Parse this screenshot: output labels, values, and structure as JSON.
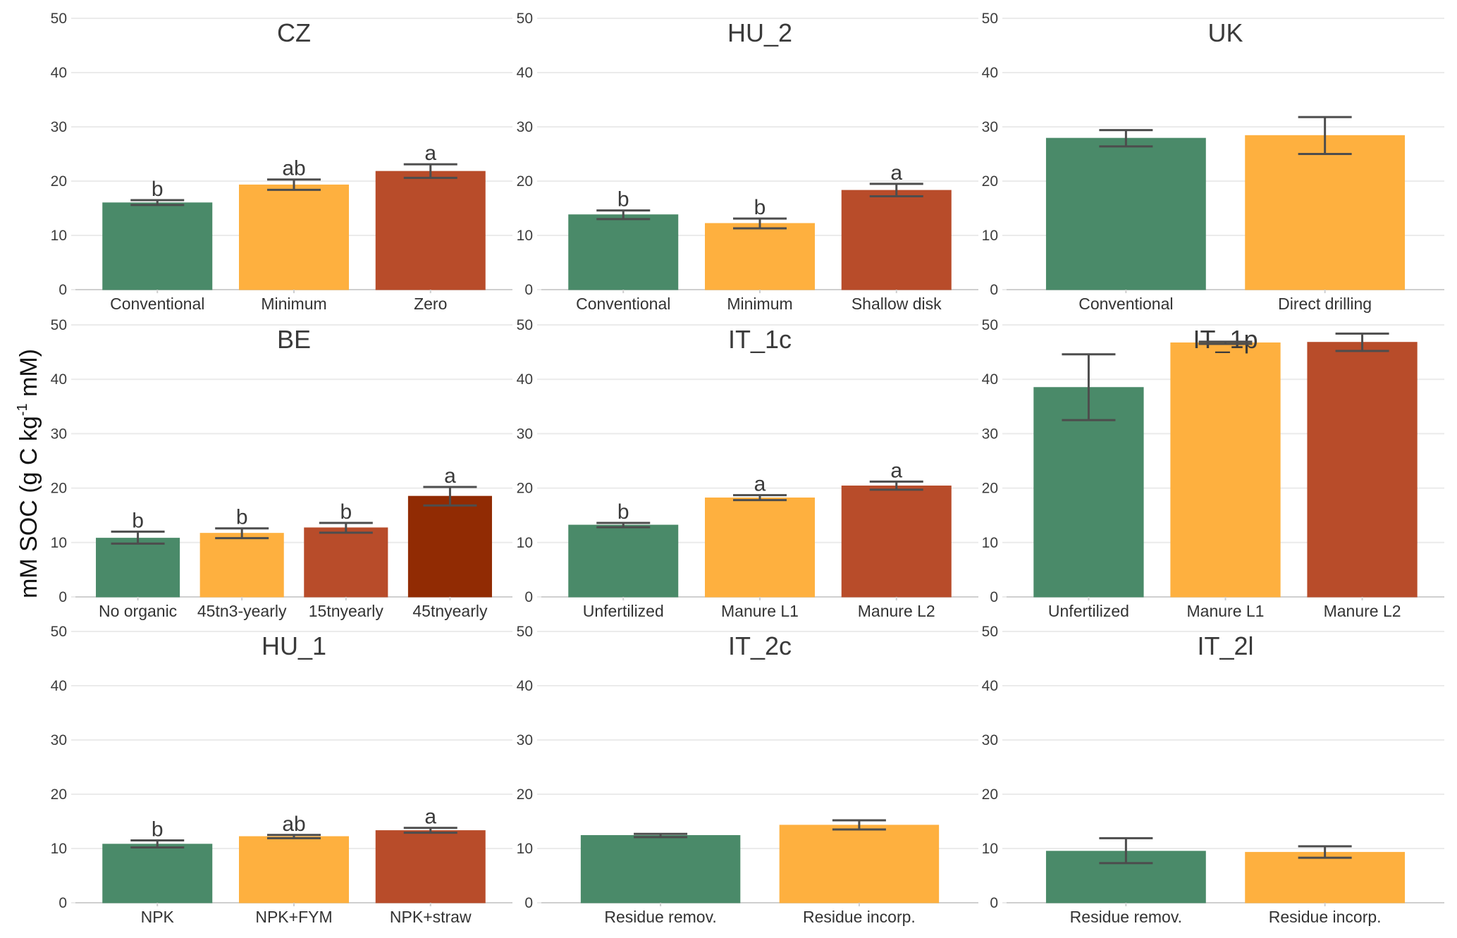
{
  "chart_data": {
    "type": "bar",
    "layout": "3x3 facet grid",
    "ylabel": "mM SOC (g C kg",
    "ylabel_superscript": "-1",
    "ylabel_suffix": " mM)",
    "ylim": [
      0,
      50
    ],
    "yticks": [
      0,
      10,
      20,
      30,
      40,
      50
    ],
    "grid": true,
    "error_bars": true,
    "colors": {
      "green": "#4a8a69",
      "orange": "#feb03f",
      "rust": "#b84c2a",
      "darkred": "#912b03",
      "errorbar": "#4d4d4d"
    },
    "panels": [
      {
        "title": "CZ",
        "categories": [
          "Conventional",
          "Minimum",
          "Zero"
        ],
        "values": [
          16.0,
          19.3,
          21.8
        ],
        "err_low": [
          15.6,
          18.4,
          20.6
        ],
        "err_high": [
          16.5,
          20.3,
          23.1
        ],
        "letters": [
          "b",
          "ab",
          "a"
        ],
        "colors": [
          "green",
          "orange",
          "rust"
        ]
      },
      {
        "title": "HU_2",
        "categories": [
          "Conventional",
          "Minimum",
          "Shallow disk"
        ],
        "values": [
          13.8,
          12.2,
          18.3
        ],
        "err_low": [
          13.0,
          11.3,
          17.2
        ],
        "err_high": [
          14.6,
          13.1,
          19.5
        ],
        "letters": [
          "b",
          "b",
          "a"
        ],
        "colors": [
          "green",
          "orange",
          "rust"
        ]
      },
      {
        "title": "UK",
        "categories": [
          "Conventional",
          "Direct drilling"
        ],
        "values": [
          27.9,
          28.4
        ],
        "err_low": [
          26.4,
          25.0
        ],
        "err_high": [
          29.4,
          31.8
        ],
        "letters": [
          "",
          ""
        ],
        "colors": [
          "green",
          "orange"
        ]
      },
      {
        "title": "BE",
        "categories": [
          "No organic",
          "45tn3-yearly",
          "15tnyearly",
          "45tnyearly"
        ],
        "values": [
          10.8,
          11.7,
          12.7,
          18.5
        ],
        "err_low": [
          9.8,
          10.8,
          11.8,
          16.8
        ],
        "err_high": [
          12.0,
          12.6,
          13.6,
          20.2
        ],
        "letters": [
          "b",
          "b",
          "b",
          "a"
        ],
        "colors": [
          "green",
          "orange",
          "rust",
          "darkred"
        ]
      },
      {
        "title": "IT_1c",
        "categories": [
          "Unfertilized",
          "Manure L1",
          "Manure L2"
        ],
        "values": [
          13.2,
          18.2,
          20.4
        ],
        "err_low": [
          12.8,
          17.8,
          19.7
        ],
        "err_high": [
          13.6,
          18.7,
          21.2
        ],
        "letters": [
          "b",
          "a",
          "a"
        ],
        "colors": [
          "green",
          "orange",
          "rust"
        ]
      },
      {
        "title": "IT_1p",
        "categories": [
          "Unfertilized",
          "Manure L1",
          "Manure L2"
        ],
        "values": [
          38.5,
          46.7,
          46.8
        ],
        "err_low": [
          32.5,
          46.5,
          45.2
        ],
        "err_high": [
          44.6,
          46.9,
          48.4
        ],
        "letters": [
          "",
          "",
          ""
        ],
        "colors": [
          "green",
          "orange",
          "rust"
        ]
      },
      {
        "title": "HU_1",
        "categories": [
          "NPK",
          "NPK+FYM",
          "NPK+straw"
        ],
        "values": [
          10.8,
          12.2,
          13.3
        ],
        "err_low": [
          10.2,
          11.9,
          12.9
        ],
        "err_high": [
          11.5,
          12.5,
          13.8
        ],
        "letters": [
          "b",
          "ab",
          "a"
        ],
        "colors": [
          "green",
          "orange",
          "rust"
        ]
      },
      {
        "title": "IT_2c",
        "categories": [
          "Residue remov.",
          "Residue incorp."
        ],
        "values": [
          12.4,
          14.3
        ],
        "err_low": [
          12.1,
          13.5
        ],
        "err_high": [
          12.7,
          15.2
        ],
        "letters": [
          "",
          ""
        ],
        "colors": [
          "green",
          "orange"
        ]
      },
      {
        "title": "IT_2l",
        "categories": [
          "Residue remov.",
          "Residue incorp."
        ],
        "values": [
          9.5,
          9.3
        ],
        "err_low": [
          7.3,
          8.3
        ],
        "err_high": [
          11.9,
          10.4
        ],
        "letters": [
          "",
          ""
        ],
        "colors": [
          "green",
          "orange"
        ]
      }
    ]
  }
}
